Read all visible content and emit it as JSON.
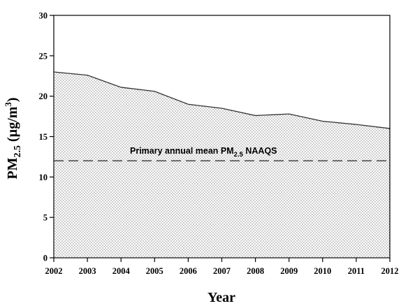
{
  "chart_data": {
    "type": "area",
    "x": [
      2002,
      2003,
      2004,
      2005,
      2006,
      2007,
      2008,
      2009,
      2010,
      2011,
      2012
    ],
    "x_tick_labels": [
      "2002",
      "2003",
      "2004",
      "2005",
      "2006",
      "2007",
      "2008",
      "2009",
      "2010",
      "2011",
      "2012"
    ],
    "series": [
      {
        "values": [
          23.0,
          22.6,
          21.1,
          20.6,
          19.0,
          18.5,
          17.6,
          17.8,
          16.9,
          16.5,
          16.0
        ]
      }
    ],
    "xlabel": "Year",
    "ylabel": {
      "main": "PM",
      "sub": "2.5",
      "unit_prefix": " (µg/m",
      "unit_sup": "3",
      "unit_suffix": ")"
    },
    "ylim": [
      0,
      30
    ],
    "xlim": [
      2002,
      2012
    ],
    "y_ticks": [
      0,
      5,
      10,
      15,
      20,
      25,
      30
    ],
    "y_tick_labels": [
      "0",
      "5",
      "10",
      "15",
      "20",
      "25",
      "30"
    ],
    "reference_line": {
      "value": 12,
      "style": "dashed",
      "label_main": "Primary annual mean PM",
      "label_sub": "2.5",
      "label_suffix": " NAAQS"
    },
    "fill_pattern": "dotted",
    "grid": false,
    "legend": "none"
  }
}
